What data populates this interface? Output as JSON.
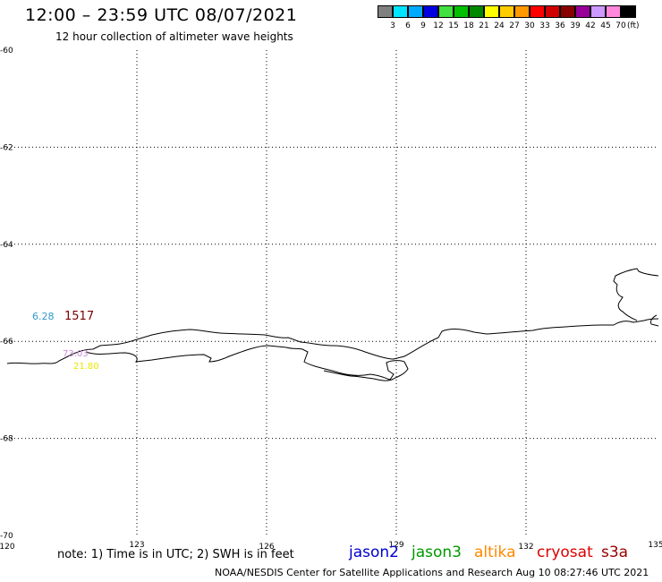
{
  "header": {
    "title": "12:00 – 23:59 UTC 08/07/2021",
    "subtitle": "12 hour collection of altimeter wave heights"
  },
  "color_scale": {
    "unit": "(ft)",
    "bins": [
      {
        "label": "3",
        "color": "#808080"
      },
      {
        "label": "6",
        "color": "#00e5ff"
      },
      {
        "label": "9",
        "color": "#00aaff"
      },
      {
        "label": "12",
        "color": "#0000e0"
      },
      {
        "label": "15",
        "color": "#40e040"
      },
      {
        "label": "18",
        "color": "#00c000"
      },
      {
        "label": "21",
        "color": "#008800"
      },
      {
        "label": "24",
        "color": "#ffff00"
      },
      {
        "label": "27",
        "color": "#ffcc00"
      },
      {
        "label": "30",
        "color": "#ff9900"
      },
      {
        "label": "33",
        "color": "#ff0000"
      },
      {
        "label": "36",
        "color": "#d00000"
      },
      {
        "label": "39",
        "color": "#880000"
      },
      {
        "label": "42",
        "color": "#990099"
      },
      {
        "label": "45",
        "color": "#cc99ff"
      },
      {
        "label": "70",
        "color": "#ff88dd"
      },
      {
        "label": "",
        "color": "#000000"
      }
    ]
  },
  "map": {
    "lon_range": [
      120,
      135
    ],
    "lat_range": [
      -70,
      -60
    ],
    "lon_ticks": [
      "120",
      "123",
      "126",
      "129",
      "132",
      "135"
    ],
    "lat_ticks": [
      "-60",
      "-62",
      "-64",
      "-66",
      "-68",
      "-70"
    ],
    "grid": "dotted",
    "observations": [
      {
        "text": "6.28",
        "color": "#3399cc"
      },
      {
        "text": "1517",
        "color": "#7a0000"
      },
      {
        "text": "73.03",
        "color": "#cc88dd"
      },
      {
        "text": "21.80",
        "color": "#e8e800"
      }
    ]
  },
  "footer": {
    "note": "note: 1) Time is in UTC; 2) SWH is in feet",
    "satellites": [
      {
        "name": "jason2",
        "color": "#0000cc"
      },
      {
        "name": "jason3",
        "color": "#009900"
      },
      {
        "name": "altika",
        "color": "#ff8800"
      },
      {
        "name": "cryosat",
        "color": "#dd0000"
      },
      {
        "name": "s3a",
        "color": "#990000"
      }
    ],
    "credit": "NOAA/NESDIS Center for Satellite Applications and Research    Aug 10 08:27:46 UTC 2021"
  }
}
